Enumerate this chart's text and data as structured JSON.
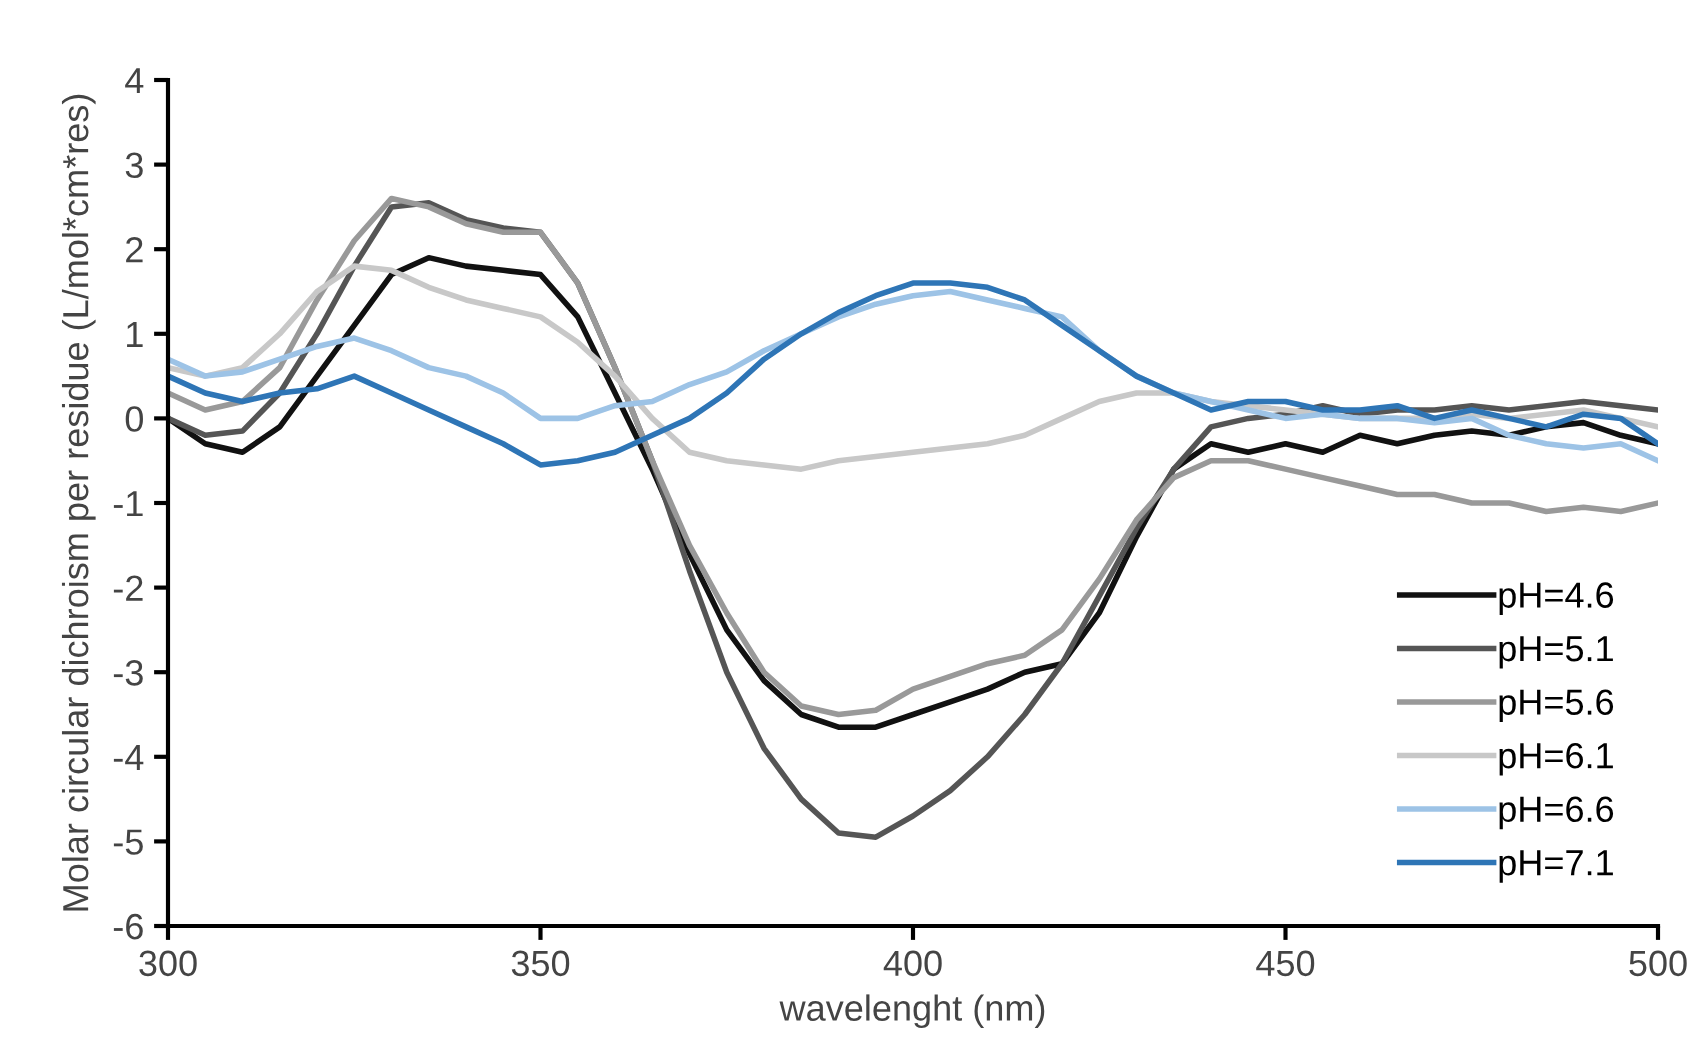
{
  "chart_data": {
    "type": "line",
    "xlabel": "wavelenght (nm)",
    "ylabel": "Molar circular dichroism per residue (L/mol*cm*res)",
    "x": [
      300,
      305,
      310,
      315,
      320,
      325,
      330,
      335,
      340,
      345,
      350,
      355,
      360,
      365,
      370,
      375,
      380,
      385,
      390,
      395,
      400,
      405,
      410,
      415,
      420,
      425,
      430,
      435,
      440,
      445,
      450,
      455,
      460,
      465,
      470,
      475,
      480,
      485,
      490,
      495,
      500
    ],
    "xlim": [
      300,
      500
    ],
    "xticks": [
      300,
      350,
      400,
      450,
      500
    ],
    "ylim": [
      -6,
      4
    ],
    "yticks": [
      -6,
      -5,
      -4,
      -3,
      -2,
      -1,
      0,
      1,
      2,
      3,
      4
    ],
    "grid": false,
    "legend": "bottom right",
    "marker": "none",
    "line_style": "solid",
    "series": [
      {
        "name": "pH=4.6",
        "color": "#111111",
        "values": [
          0.0,
          -0.3,
          -0.4,
          -0.1,
          0.5,
          1.1,
          1.7,
          1.9,
          1.8,
          1.75,
          1.7,
          1.2,
          0.3,
          -0.6,
          -1.6,
          -2.5,
          -3.1,
          -3.5,
          -3.65,
          -3.65,
          -3.5,
          -3.35,
          -3.2,
          -3.0,
          -2.9,
          -2.3,
          -1.4,
          -0.6,
          -0.3,
          -0.4,
          -0.3,
          -0.4,
          -0.2,
          -0.3,
          -0.2,
          -0.15,
          -0.2,
          -0.1,
          -0.05,
          -0.2,
          -0.3
        ]
      },
      {
        "name": "pH=5.1",
        "color": "#555555",
        "values": [
          0.0,
          -0.2,
          -0.15,
          0.3,
          1.0,
          1.8,
          2.5,
          2.55,
          2.35,
          2.25,
          2.2,
          1.6,
          0.6,
          -0.5,
          -1.8,
          -3.0,
          -3.9,
          -4.5,
          -4.9,
          -4.95,
          -4.7,
          -4.4,
          -4.0,
          -3.5,
          -2.9,
          -2.1,
          -1.3,
          -0.6,
          -0.1,
          0.0,
          0.05,
          0.15,
          0.05,
          0.1,
          0.1,
          0.15,
          0.1,
          0.15,
          0.2,
          0.15,
          0.1
        ]
      },
      {
        "name": "pH=5.6",
        "color": "#999999",
        "values": [
          0.3,
          0.1,
          0.2,
          0.6,
          1.4,
          2.1,
          2.6,
          2.5,
          2.3,
          2.2,
          2.2,
          1.6,
          0.6,
          -0.5,
          -1.5,
          -2.3,
          -3.0,
          -3.4,
          -3.5,
          -3.45,
          -3.2,
          -3.05,
          -2.9,
          -2.8,
          -2.5,
          -1.9,
          -1.2,
          -0.7,
          -0.5,
          -0.5,
          -0.6,
          -0.7,
          -0.8,
          -0.9,
          -0.9,
          -1.0,
          -1.0,
          -1.1,
          -1.05,
          -1.1,
          -1.0
        ]
      },
      {
        "name": "pH=6.1",
        "color": "#c8c8c8",
        "values": [
          0.6,
          0.5,
          0.6,
          1.0,
          1.5,
          1.8,
          1.75,
          1.55,
          1.4,
          1.3,
          1.2,
          0.9,
          0.5,
          0.0,
          -0.4,
          -0.5,
          -0.55,
          -0.6,
          -0.5,
          -0.45,
          -0.4,
          -0.35,
          -0.3,
          -0.2,
          0.0,
          0.2,
          0.3,
          0.3,
          0.2,
          0.15,
          0.1,
          0.05,
          0.0,
          0.0,
          0.0,
          0.05,
          0.0,
          0.05,
          0.1,
          0.0,
          -0.1
        ]
      },
      {
        "name": "pH=6.6",
        "color": "#9dc3e6",
        "values": [
          0.7,
          0.5,
          0.55,
          0.7,
          0.85,
          0.95,
          0.8,
          0.6,
          0.5,
          0.3,
          0.0,
          0.0,
          0.15,
          0.2,
          0.4,
          0.55,
          0.8,
          1.0,
          1.2,
          1.35,
          1.45,
          1.5,
          1.4,
          1.3,
          1.2,
          0.8,
          0.5,
          0.3,
          0.2,
          0.1,
          0.0,
          0.05,
          0.0,
          0.0,
          -0.05,
          0.0,
          -0.2,
          -0.3,
          -0.35,
          -0.3,
          -0.5
        ]
      },
      {
        "name": "pH=7.1",
        "color": "#2e75b6",
        "values": [
          0.5,
          0.3,
          0.2,
          0.3,
          0.35,
          0.5,
          0.3,
          0.1,
          -0.1,
          -0.3,
          -0.55,
          -0.5,
          -0.4,
          -0.2,
          0.0,
          0.3,
          0.7,
          1.0,
          1.25,
          1.45,
          1.6,
          1.6,
          1.55,
          1.4,
          1.1,
          0.8,
          0.5,
          0.3,
          0.1,
          0.2,
          0.2,
          0.1,
          0.1,
          0.15,
          0.0,
          0.1,
          0.0,
          -0.1,
          0.05,
          0.0,
          -0.3
        ]
      }
    ]
  }
}
